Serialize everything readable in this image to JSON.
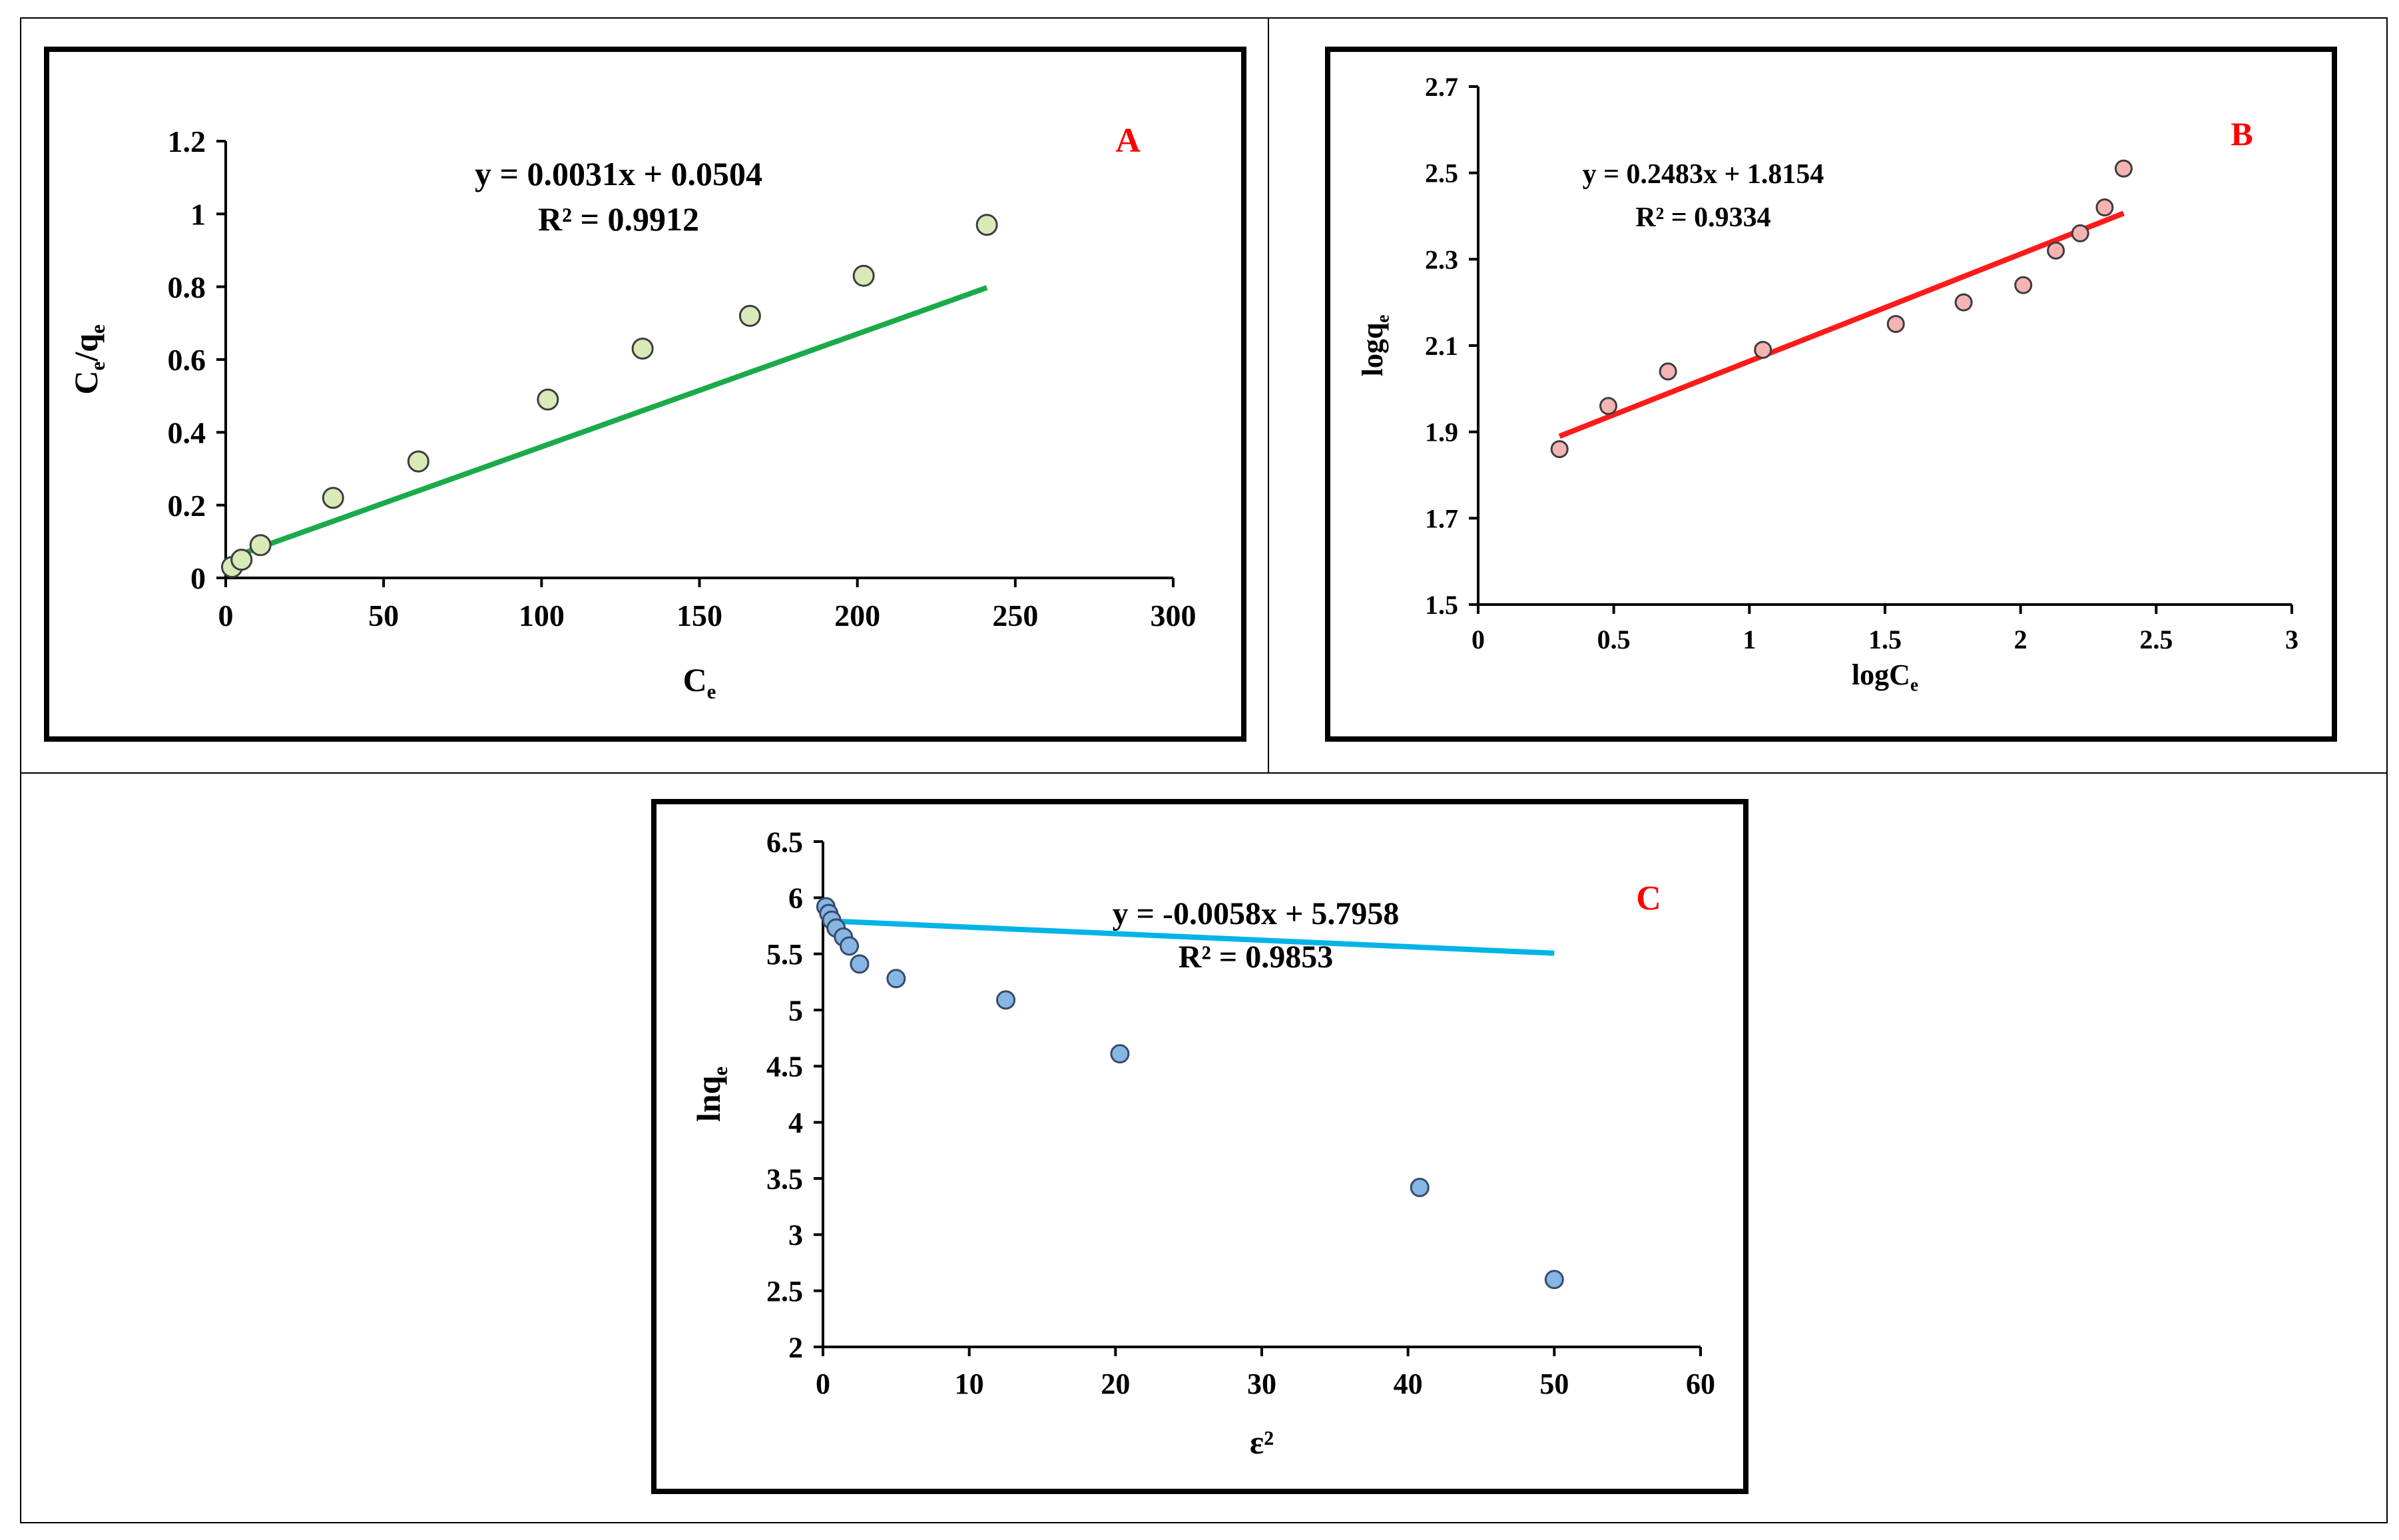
{
  "chart_data": [
    {
      "type": "scatter",
      "panel_label": "A",
      "xlabel_main": "C",
      "xlabel_sub": "e",
      "ylabel_parts": [
        {
          "t": "C"
        },
        {
          "t": "e",
          "sub": true
        },
        {
          "t": "/q"
        },
        {
          "t": "e",
          "sub": true
        }
      ],
      "equation": "y = 0.0031x + 0.0504",
      "r2": "R² = 0.9912",
      "xlim": [
        0,
        300
      ],
      "ylim": [
        0,
        1.2
      ],
      "xticks": [
        "0",
        "50",
        "100",
        "150",
        "200",
        "250",
        "300"
      ],
      "yticks": [
        "0",
        "0.2",
        "0.4",
        "0.6",
        "0.8",
        "1",
        "1.2"
      ],
      "points": [
        [
          2,
          0.03
        ],
        [
          5,
          0.05
        ],
        [
          11,
          0.09
        ],
        [
          34,
          0.22
        ],
        [
          61,
          0.32
        ],
        [
          102,
          0.49
        ],
        [
          132,
          0.63
        ],
        [
          166,
          0.72
        ],
        [
          202,
          0.83
        ],
        [
          241,
          0.97
        ]
      ],
      "trendline": {
        "slope": 0.0031,
        "intercept": 0.0504,
        "x_range": [
          2,
          241
        ]
      },
      "colors": {
        "line": "#1aaa4a",
        "marker_fill": "#d8eab8",
        "marker_stroke": "#3d3d3d",
        "label": "#ff0000"
      }
    },
    {
      "type": "scatter",
      "panel_label": "B",
      "xlabel_main": "logC",
      "xlabel_sub": "e",
      "ylabel_parts": [
        {
          "t": "logq"
        },
        {
          "t": "e",
          "sub": true
        }
      ],
      "equation": "y = 0.2483x + 1.8154",
      "r2": "R² = 0.9334",
      "xlim": [
        0,
        3
      ],
      "ylim": [
        1.5,
        2.7
      ],
      "xticks": [
        "0",
        "0.5",
        "1",
        "1.5",
        "2",
        "2.5",
        "3"
      ],
      "yticks": [
        "1.5",
        "1.7",
        "1.9",
        "2.1",
        "2.3",
        "2.5",
        "2.7"
      ],
      "points": [
        [
          0.3,
          1.86
        ],
        [
          0.48,
          1.96
        ],
        [
          0.7,
          2.04
        ],
        [
          1.05,
          2.09
        ],
        [
          1.54,
          2.15
        ],
        [
          1.79,
          2.2
        ],
        [
          2.01,
          2.24
        ],
        [
          2.13,
          2.32
        ],
        [
          2.22,
          2.36
        ],
        [
          2.31,
          2.42
        ],
        [
          2.38,
          2.51
        ]
      ],
      "trendline": {
        "slope": 0.2483,
        "intercept": 1.8154,
        "x_range": [
          0.3,
          2.38
        ]
      },
      "colors": {
        "line": "#ff1a1a",
        "marker_fill": "#f6b3b3",
        "marker_stroke": "#3d3d3d",
        "label": "#ff0000"
      }
    },
    {
      "type": "scatter",
      "panel_label": "C",
      "xlabel_main": "ε²",
      "xlabel_sub": "",
      "ylabel_parts": [
        {
          "t": "lnq"
        },
        {
          "t": "e",
          "sub": true
        }
      ],
      "equation": "y = -0.0058x + 5.7958",
      "r2": "R² = 0.9853",
      "xlim": [
        0,
        60
      ],
      "ylim": [
        2,
        6.5
      ],
      "xticks": [
        "0",
        "10",
        "20",
        "30",
        "40",
        "50",
        "60"
      ],
      "yticks": [
        "2",
        "2.5",
        "3",
        "3.5",
        "4",
        "4.5",
        "5",
        "5.5",
        "6",
        "6.5"
      ],
      "points": [
        [
          0.2,
          5.92
        ],
        [
          0.4,
          5.86
        ],
        [
          0.6,
          5.8
        ],
        [
          0.9,
          5.73
        ],
        [
          1.4,
          5.65
        ],
        [
          1.8,
          5.57
        ],
        [
          2.5,
          5.41
        ],
        [
          5.0,
          5.28
        ],
        [
          12.5,
          5.09
        ],
        [
          20.3,
          4.61
        ],
        [
          40.8,
          3.42
        ],
        [
          50.0,
          2.6
        ]
      ],
      "trendline": {
        "slope": -0.0058,
        "intercept": 5.7958,
        "x_range": [
          0.2,
          50
        ]
      },
      "colors": {
        "line": "#00b4e6",
        "marker_fill": "#86b6e4",
        "marker_stroke": "#3a4a6a",
        "label": "#ff0000"
      }
    }
  ]
}
